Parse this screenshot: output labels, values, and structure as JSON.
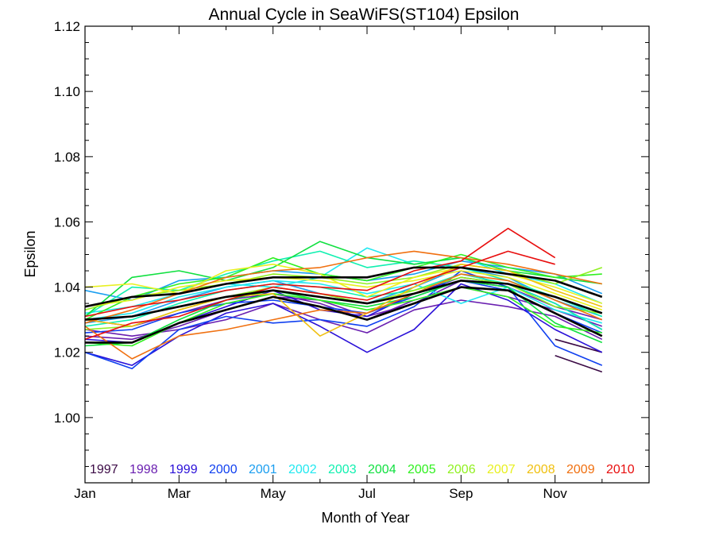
{
  "chart_data": {
    "type": "line",
    "title": "Annual Cycle in SeaWiFS(ST104) Epsilon",
    "xlabel": "Month of Year",
    "ylabel": "Epsilon",
    "xlim": [
      1,
      13
    ],
    "ylim": [
      0.98,
      1.12
    ],
    "x_ticks": [
      {
        "x": 1,
        "label": "Jan"
      },
      {
        "x": 3,
        "label": "Mar"
      },
      {
        "x": 5,
        "label": "May"
      },
      {
        "x": 7,
        "label": "Jul"
      },
      {
        "x": 9,
        "label": "Sep"
      },
      {
        "x": 11,
        "label": "Nov"
      }
    ],
    "y_ticks": [
      {
        "y": 1.0,
        "label": "1.00"
      },
      {
        "y": 1.02,
        "label": "1.02"
      },
      {
        "y": 1.04,
        "label": "1.04"
      },
      {
        "y": 1.06,
        "label": "1.06"
      },
      {
        "y": 1.08,
        "label": "1.08"
      },
      {
        "y": 1.1,
        "label": "1.10"
      },
      {
        "y": 1.12,
        "label": "1.12"
      }
    ],
    "grid": false,
    "legend_placement": "bottom",
    "legend": [
      {
        "label": "1997",
        "color": "#3b0a45"
      },
      {
        "label": "1998",
        "color": "#6a1fb0"
      },
      {
        "label": "1999",
        "color": "#2a10d8"
      },
      {
        "label": "2000",
        "color": "#1040f0"
      },
      {
        "label": "2001",
        "color": "#1a9ef0"
      },
      {
        "label": "2002",
        "color": "#20e8f0"
      },
      {
        "label": "2003",
        "color": "#10f0b0"
      },
      {
        "label": "2004",
        "color": "#10e040"
      },
      {
        "label": "2005",
        "color": "#30f020"
      },
      {
        "label": "2006",
        "color": "#90f020"
      },
      {
        "label": "2007",
        "color": "#e8f020"
      },
      {
        "label": "2008",
        "color": "#f0c010"
      },
      {
        "label": "2009",
        "color": "#f07010"
      },
      {
        "label": "2010",
        "color": "#e80e0e"
      }
    ],
    "series": [
      {
        "color": "#3b0a45",
        "x": [
          11,
          12
        ],
        "y": [
          1.019,
          1.014
        ]
      },
      {
        "color": "#3b0a45",
        "x": [
          11,
          12
        ],
        "y": [
          1.024,
          1.02
        ]
      },
      {
        "color": "#6a1fb0",
        "x": [
          1,
          2,
          3,
          4,
          5,
          6,
          7,
          8,
          9,
          10,
          11,
          12
        ],
        "y": [
          1.025,
          1.024,
          1.028,
          1.033,
          1.037,
          1.036,
          1.031,
          1.035,
          1.042,
          1.04,
          1.034,
          1.03
        ]
      },
      {
        "color": "#6a1fb0",
        "x": [
          1,
          2,
          3,
          4,
          5,
          6,
          7,
          8,
          9,
          10,
          11,
          12
        ],
        "y": [
          1.027,
          1.025,
          1.027,
          1.03,
          1.035,
          1.03,
          1.026,
          1.033,
          1.036,
          1.034,
          1.031,
          1.024
        ]
      },
      {
        "color": "#6a1fb0",
        "x": [
          1,
          2,
          3,
          4,
          5,
          6,
          7,
          8,
          9,
          10,
          11,
          12
        ],
        "y": [
          1.03,
          1.028,
          1.032,
          1.036,
          1.038,
          1.035,
          1.03,
          1.036,
          1.04,
          1.037,
          1.033,
          1.028
        ]
      },
      {
        "color": "#2a10d8",
        "x": [
          1,
          2,
          3,
          4,
          5,
          6,
          7,
          8,
          9,
          10,
          11,
          12
        ],
        "y": [
          1.02,
          1.016,
          1.025,
          1.032,
          1.035,
          1.028,
          1.02,
          1.027,
          1.041,
          1.036,
          1.027,
          1.02
        ]
      },
      {
        "color": "#2a10d8",
        "x": [
          1,
          2,
          3,
          4,
          5,
          6,
          7,
          8,
          9,
          10,
          11,
          12
        ],
        "y": [
          1.024,
          1.023,
          1.029,
          1.034,
          1.039,
          1.033,
          1.031,
          1.038,
          1.043,
          1.041,
          1.035,
          1.027
        ]
      },
      {
        "color": "#1040f0",
        "x": [
          1,
          2,
          3,
          4,
          5,
          6,
          7,
          8,
          9,
          10,
          11,
          12
        ],
        "y": [
          1.02,
          1.015,
          1.027,
          1.031,
          1.029,
          1.03,
          1.028,
          1.034,
          1.045,
          1.04,
          1.022,
          1.016
        ]
      },
      {
        "color": "#1040f0",
        "x": [
          1,
          2,
          3,
          4,
          5,
          6,
          7,
          8,
          9,
          10,
          11,
          12
        ],
        "y": [
          1.026,
          1.027,
          1.032,
          1.035,
          1.036,
          1.034,
          1.032,
          1.037,
          1.042,
          1.039,
          1.032,
          1.026
        ]
      },
      {
        "color": "#1a9ef0",
        "x": [
          1,
          2,
          3,
          4,
          5,
          6,
          7,
          8,
          9,
          10,
          11,
          12
        ],
        "y": [
          1.029,
          1.031,
          1.036,
          1.04,
          1.042,
          1.038,
          1.035,
          1.04,
          1.046,
          1.043,
          1.036,
          1.031
        ]
      },
      {
        "color": "#1a9ef0",
        "x": [
          1,
          2,
          3,
          4,
          5,
          6,
          7,
          8,
          9,
          10,
          11,
          12
        ],
        "y": [
          1.039,
          1.036,
          1.042,
          1.043,
          1.045,
          1.044,
          1.042,
          1.044,
          1.048,
          1.046,
          1.044,
          1.038
        ]
      },
      {
        "color": "#20e8f0",
        "x": [
          1,
          2,
          3,
          4,
          5,
          6,
          7,
          8,
          9,
          10,
          11,
          12
        ],
        "y": [
          1.032,
          1.034,
          1.038,
          1.041,
          1.04,
          1.043,
          1.052,
          1.047,
          1.049,
          1.044,
          1.041,
          1.035
        ]
      },
      {
        "color": "#20e8f0",
        "x": [
          1,
          2,
          3,
          4,
          5,
          6,
          7,
          8,
          9,
          10,
          11,
          12
        ],
        "y": [
          1.03,
          1.032,
          1.037,
          1.04,
          1.042,
          1.041,
          1.038,
          1.041,
          1.035,
          1.04,
          1.033,
          1.029
        ]
      },
      {
        "color": "#10f0b0",
        "x": [
          1,
          2,
          3,
          4,
          5,
          6,
          7,
          8,
          9,
          10,
          11,
          12
        ],
        "y": [
          1.031,
          1.04,
          1.039,
          1.044,
          1.048,
          1.051,
          1.046,
          1.048,
          1.046,
          1.042,
          1.037,
          1.031
        ]
      },
      {
        "color": "#10f0b0",
        "x": [
          1,
          2,
          3,
          4,
          5,
          6,
          7,
          8,
          9,
          10,
          11,
          12
        ],
        "y": [
          1.028,
          1.03,
          1.035,
          1.039,
          1.041,
          1.04,
          1.037,
          1.039,
          1.044,
          1.041,
          1.035,
          1.027
        ]
      },
      {
        "color": "#10e040",
        "x": [
          1,
          2,
          3,
          4,
          5,
          6,
          7,
          8,
          9,
          10,
          11,
          12
        ],
        "y": [
          1.031,
          1.043,
          1.045,
          1.042,
          1.046,
          1.054,
          1.049,
          1.047,
          1.049,
          1.045,
          1.043,
          1.041
        ]
      },
      {
        "color": "#10e040",
        "x": [
          1,
          2,
          3,
          4,
          5,
          6,
          7,
          8,
          9,
          10,
          11,
          12
        ],
        "y": [
          1.022,
          1.023,
          1.03,
          1.036,
          1.039,
          1.036,
          1.034,
          1.037,
          1.042,
          1.04,
          1.029,
          1.023
        ]
      },
      {
        "color": "#30f020",
        "x": [
          1,
          2,
          3,
          4,
          5,
          6,
          7,
          8,
          9,
          10,
          11,
          12
        ],
        "y": [
          1.03,
          1.037,
          1.041,
          1.043,
          1.049,
          1.044,
          1.042,
          1.046,
          1.05,
          1.046,
          1.043,
          1.044
        ]
      },
      {
        "color": "#30f020",
        "x": [
          1,
          2,
          3,
          4,
          5,
          6,
          7,
          8,
          9,
          10,
          11,
          12
        ],
        "y": [
          1.023,
          1.022,
          1.029,
          1.035,
          1.038,
          1.036,
          1.033,
          1.036,
          1.04,
          1.037,
          1.028,
          1.026
        ]
      },
      {
        "color": "#90f020",
        "x": [
          1,
          2,
          3,
          4,
          5,
          6,
          7,
          8,
          9,
          10,
          11,
          12
        ],
        "y": [
          1.033,
          1.037,
          1.039,
          1.041,
          1.044,
          1.043,
          1.041,
          1.043,
          1.047,
          1.045,
          1.041,
          1.046
        ]
      },
      {
        "color": "#90f020",
        "x": [
          1,
          2,
          3,
          4,
          5,
          6,
          7,
          8,
          9,
          10,
          11,
          12
        ],
        "y": [
          1.027,
          1.028,
          1.033,
          1.037,
          1.04,
          1.038,
          1.035,
          1.039,
          1.043,
          1.041,
          1.034,
          1.032
        ]
      },
      {
        "color": "#e8f020",
        "x": [
          1,
          2,
          3,
          4,
          5,
          6,
          7,
          8,
          9,
          10,
          11,
          12
        ],
        "y": [
          1.04,
          1.041,
          1.038,
          1.045,
          1.047,
          1.044,
          1.037,
          1.043,
          1.046,
          1.044,
          1.04,
          1.035
        ]
      },
      {
        "color": "#e8f020",
        "x": [
          1,
          2,
          3,
          4,
          5,
          6,
          7,
          8,
          9,
          10,
          11,
          12
        ],
        "y": [
          1.034,
          1.036,
          1.04,
          1.042,
          1.043,
          1.042,
          1.04,
          1.042,
          1.045,
          1.043,
          1.038,
          1.033
        ]
      },
      {
        "color": "#f0c010",
        "x": [
          1,
          2,
          3,
          4,
          5,
          6,
          7,
          8,
          9,
          10,
          11,
          12
        ],
        "y": [
          1.03,
          1.028,
          1.033,
          1.037,
          1.038,
          1.025,
          1.032,
          1.04,
          1.047,
          1.045,
          1.039,
          1.034
        ]
      },
      {
        "color": "#f07010",
        "x": [
          1,
          2,
          3,
          4,
          5,
          6,
          7,
          8,
          9,
          10,
          11,
          12
        ],
        "y": [
          1.028,
          1.018,
          1.025,
          1.027,
          1.03,
          1.033,
          1.032,
          1.038,
          1.044,
          1.042,
          1.036,
          1.03
        ]
      },
      {
        "color": "#f07010",
        "x": [
          1,
          2,
          3,
          4,
          5,
          6,
          7,
          8,
          9,
          10,
          11,
          12
        ],
        "y": [
          1.029,
          1.033,
          1.038,
          1.043,
          1.045,
          1.046,
          1.049,
          1.051,
          1.049,
          1.047,
          1.044,
          1.041
        ]
      },
      {
        "color": "#e80e0e",
        "x": [
          1,
          2,
          3,
          4,
          5,
          6,
          7,
          8,
          9,
          10,
          11
        ],
        "y": [
          1.031,
          1.034,
          1.036,
          1.039,
          1.041,
          1.04,
          1.039,
          1.045,
          1.048,
          1.058,
          1.049
        ]
      },
      {
        "color": "#e80e0e",
        "x": [
          1,
          2,
          3,
          4,
          5,
          6,
          7,
          8,
          9,
          10,
          11
        ],
        "y": [
          1.024,
          1.029,
          1.031,
          1.036,
          1.04,
          1.038,
          1.036,
          1.041,
          1.046,
          1.051,
          1.047
        ]
      },
      {
        "color": "#000000",
        "width": 2.6,
        "x": [
          1,
          2,
          3,
          4,
          5,
          6,
          7,
          8,
          9,
          10,
          11,
          12
        ],
        "y": [
          1.034,
          1.037,
          1.038,
          1.041,
          1.043,
          1.043,
          1.043,
          1.046,
          1.046,
          1.044,
          1.042,
          1.037
        ]
      },
      {
        "color": "#000000",
        "width": 2.6,
        "x": [
          1,
          2,
          3,
          4,
          5,
          6,
          7,
          8,
          9,
          10,
          11,
          12
        ],
        "y": [
          1.03,
          1.031,
          1.034,
          1.037,
          1.039,
          1.037,
          1.035,
          1.038,
          1.042,
          1.041,
          1.037,
          1.032
        ]
      },
      {
        "color": "#000000",
        "width": 2.6,
        "x": [
          1,
          2,
          3,
          4,
          5,
          6,
          7,
          8,
          9,
          10,
          11,
          12
        ],
        "y": [
          1.023,
          1.023,
          1.029,
          1.033,
          1.037,
          1.034,
          1.03,
          1.035,
          1.04,
          1.039,
          1.032,
          1.025
        ]
      }
    ]
  }
}
